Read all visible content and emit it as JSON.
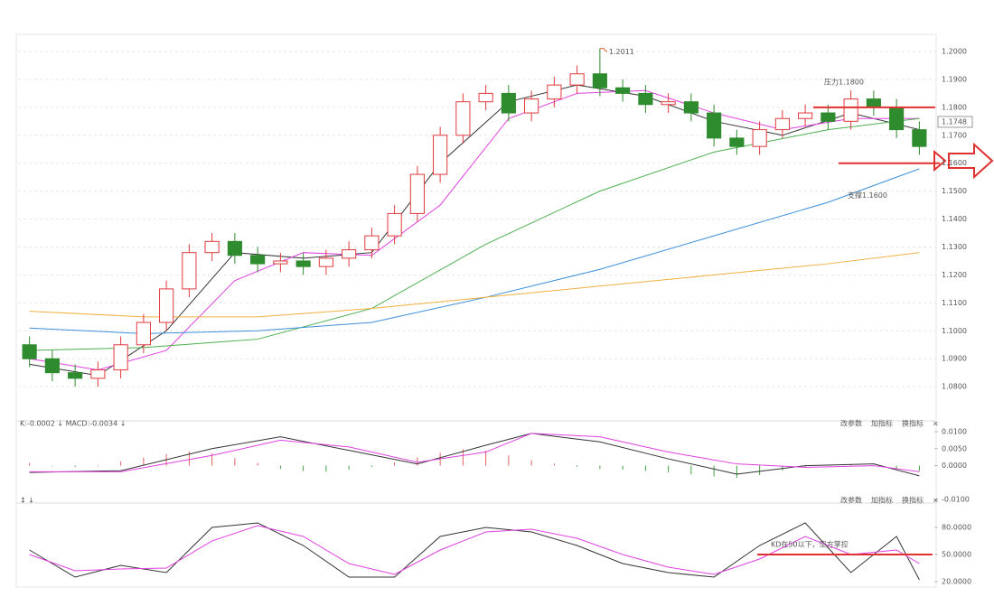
{
  "chart_data": [
    {
      "type": "candlestick",
      "open": [
        1.095,
        1.09,
        1.085,
        1.083,
        1.086,
        1.095,
        1.103,
        1.115,
        1.128,
        1.132,
        1.127,
        1.124,
        1.125,
        1.123,
        1.126,
        1.129,
        1.134,
        1.142,
        1.156,
        1.17,
        1.182,
        1.185,
        1.178,
        1.183,
        1.188,
        1.192,
        1.187,
        1.185,
        1.181,
        1.182,
        1.178,
        1.169,
        1.166,
        1.172,
        1.176,
        1.178,
        1.175,
        1.183,
        1.18,
        1.172
      ],
      "high": [
        1.098,
        1.093,
        1.088,
        1.089,
        1.098,
        1.106,
        1.118,
        1.131,
        1.135,
        1.135,
        1.13,
        1.128,
        1.128,
        1.129,
        1.132,
        1.137,
        1.145,
        1.159,
        1.173,
        1.185,
        1.188,
        1.188,
        1.186,
        1.191,
        1.195,
        1.2011,
        1.19,
        1.188,
        1.185,
        1.185,
        1.181,
        1.172,
        1.175,
        1.179,
        1.181,
        1.181,
        1.186,
        1.186,
        1.183,
        1.175
      ],
      "low": [
        1.087,
        1.082,
        1.08,
        1.08,
        1.083,
        1.092,
        1.1,
        1.112,
        1.125,
        1.124,
        1.121,
        1.121,
        1.12,
        1.12,
        1.123,
        1.126,
        1.131,
        1.139,
        1.153,
        1.167,
        1.179,
        1.175,
        1.175,
        1.18,
        1.185,
        1.184,
        1.182,
        1.178,
        1.178,
        1.175,
        1.166,
        1.163,
        1.163,
        1.169,
        1.173,
        1.172,
        1.172,
        1.177,
        1.169,
        1.163
      ],
      "close": [
        1.09,
        1.085,
        1.083,
        1.086,
        1.095,
        1.103,
        1.115,
        1.128,
        1.132,
        1.127,
        1.124,
        1.125,
        1.123,
        1.126,
        1.129,
        1.134,
        1.142,
        1.156,
        1.17,
        1.182,
        1.185,
        1.178,
        1.183,
        1.188,
        1.192,
        1.187,
        1.185,
        1.181,
        1.182,
        1.178,
        1.169,
        1.166,
        1.172,
        1.176,
        1.178,
        1.175,
        1.183,
        1.18,
        1.172,
        1.166
      ],
      "lines": [
        {
          "color": "#333333",
          "x": [
            0,
            3,
            6,
            9,
            12,
            15,
            18,
            21,
            24,
            27,
            30,
            33,
            36,
            39
          ],
          "values": [
            1.088,
            1.084,
            1.1,
            1.128,
            1.126,
            1.128,
            1.16,
            1.182,
            1.188,
            1.184,
            1.175,
            1.17,
            1.178,
            1.172
          ]
        },
        {
          "color": "#e040e0",
          "x": [
            0,
            3,
            6,
            9,
            12,
            15,
            18,
            21,
            24,
            27,
            30,
            33,
            36,
            39
          ],
          "values": [
            1.09,
            1.086,
            1.093,
            1.118,
            1.128,
            1.127,
            1.145,
            1.176,
            1.185,
            1.186,
            1.178,
            1.172,
            1.176,
            1.176
          ]
        },
        {
          "color": "#4caf50",
          "x": [
            0,
            5,
            10,
            15,
            20,
            25,
            30,
            35,
            39
          ],
          "values": [
            1.093,
            1.094,
            1.097,
            1.108,
            1.131,
            1.15,
            1.164,
            1.172,
            1.176
          ]
        },
        {
          "color": "#3b8fd9",
          "x": [
            0,
            5,
            10,
            15,
            20,
            25,
            30,
            35,
            39
          ],
          "values": [
            1.101,
            1.099,
            1.1,
            1.103,
            1.112,
            1.122,
            1.134,
            1.146,
            1.158
          ]
        },
        {
          "color": "#f0b040",
          "x": [
            0,
            5,
            10,
            15,
            20,
            25,
            30,
            35,
            39
          ],
          "values": [
            1.107,
            1.105,
            1.105,
            1.108,
            1.112,
            1.116,
            1.12,
            1.124,
            1.128
          ]
        }
      ],
      "ylim": [
        1.0697,
        1.2055
      ],
      "yticks": [
        {
          "value": 1.08,
          "label": "1.0800"
        },
        {
          "value": 1.09,
          "label": "1.0900"
        },
        {
          "value": 1.1,
          "label": "1.1000"
        },
        {
          "value": 1.11,
          "label": "1.1100"
        },
        {
          "value": 1.12,
          "label": "1.1200"
        },
        {
          "value": 1.13,
          "label": "1.1300"
        },
        {
          "value": 1.14,
          "label": "1.1400"
        },
        {
          "value": 1.15,
          "label": "1.1500"
        },
        {
          "value": 1.16,
          "label": "1.1600"
        },
        {
          "value": 1.17,
          "label": "1.1700"
        },
        {
          "value": 1.18,
          "label": "1.1800"
        },
        {
          "value": 1.19,
          "label": "1.1900"
        },
        {
          "value": 1.2,
          "label": "1.2000"
        }
      ],
      "grid": true,
      "max_marker": 1.2011,
      "last_price": 1.1748,
      "levels": [
        {
          "value": 1.18,
          "label": "压力1.1800"
        },
        {
          "value": 1.16,
          "label": "支撑1.1600"
        }
      ]
    },
    {
      "type": "macd",
      "header": "K:-0.0002 ↓ MACD:-0.0034 ↓",
      "buttons": [
        "改参数",
        "加指标",
        "换指标",
        "×"
      ],
      "histogram": [
        0.0008,
        -0.0002,
        -0.0004,
        0.0002,
        0.0012,
        0.0024,
        0.0034,
        0.0042,
        0.0036,
        0.0022,
        0.0008,
        -0.001,
        -0.0016,
        -0.0018,
        -0.0012,
        -0.0004,
        0.001,
        0.0024,
        0.0038,
        0.0048,
        0.0044,
        0.003,
        0.0016,
        0.0006,
        -0.0004,
        -0.001,
        -0.0012,
        -0.0016,
        -0.002,
        -0.0026,
        -0.0032,
        -0.0036,
        -0.0028,
        -0.0014,
        -0.0004,
        0.0002,
        0.0004,
        -0.0002,
        -0.001,
        -0.0016
      ],
      "lines": [
        {
          "color": "#333333",
          "x": [
            0,
            4,
            8,
            11,
            14,
            17,
            20,
            22,
            25,
            28,
            31,
            34,
            37,
            39
          ],
          "values": [
            -0.002,
            -0.0015,
            0.005,
            0.0085,
            0.0045,
            0.0005,
            0.006,
            0.0095,
            0.007,
            0.002,
            -0.0025,
            0.0,
            0.0005,
            -0.003
          ]
        },
        {
          "color": "#e040e0",
          "x": [
            0,
            4,
            8,
            11,
            14,
            17,
            20,
            22,
            25,
            28,
            31,
            34,
            37,
            39
          ],
          "values": [
            -0.0018,
            -0.0018,
            0.003,
            0.0075,
            0.0055,
            0.001,
            0.004,
            0.0095,
            0.0085,
            0.004,
            0.0005,
            -0.0005,
            0.0,
            -0.0018
          ]
        }
      ],
      "ylim": [
        -0.0105,
        0.0108
      ],
      "yticks": [
        {
          "value": 0.01,
          "label": "0.0100"
        },
        {
          "value": 0.005,
          "label": "0.0050"
        },
        {
          "value": 0,
          "label": "0.0000"
        },
        {
          "value": -0.01,
          "label": "-0.0100"
        }
      ]
    },
    {
      "type": "line",
      "header": "↕ ↓",
      "buttons": [
        "改参数",
        "加指标",
        "换指标",
        "×"
      ],
      "lines": [
        {
          "color": "#333333",
          "x": [
            0,
            2,
            4,
            6,
            8,
            10,
            12,
            14,
            16,
            18,
            20,
            22,
            24,
            26,
            28,
            30,
            32,
            34,
            36,
            38,
            39
          ],
          "values": [
            55,
            25,
            38,
            30,
            80,
            85,
            60,
            25,
            25,
            70,
            80,
            75,
            60,
            40,
            30,
            25,
            60,
            85,
            30,
            70,
            22
          ]
        },
        {
          "color": "#e040e0",
          "x": [
            0,
            2,
            4,
            6,
            8,
            10,
            12,
            14,
            16,
            18,
            20,
            22,
            24,
            26,
            28,
            30,
            32,
            34,
            36,
            38,
            39
          ],
          "values": [
            50,
            32,
            34,
            35,
            65,
            82,
            70,
            40,
            28,
            55,
            75,
            78,
            68,
            50,
            36,
            28,
            45,
            70,
            50,
            55,
            40
          ]
        }
      ],
      "ylim": [
        14,
        104
      ],
      "yticks": [
        {
          "value": 80,
          "label": "80.0000"
        },
        {
          "value": 50,
          "label": "50.0000"
        },
        {
          "value": 20,
          "label": "20.0000"
        }
      ],
      "level": {
        "value": 50,
        "label": "KD在50以下，空方掌控"
      }
    }
  ]
}
